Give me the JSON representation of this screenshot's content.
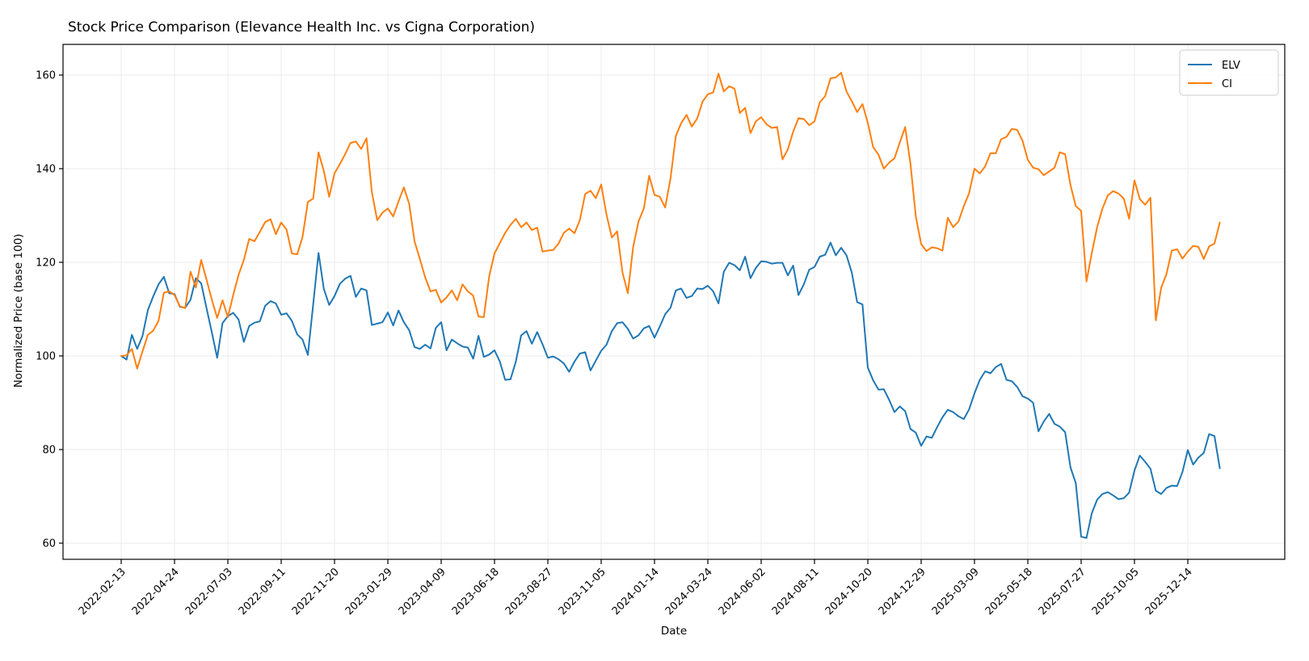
{
  "page": {
    "title": "Stock Price Comparison (Elevance Health Inc. vs Cigna Corporation)"
  },
  "chart_data": {
    "type": "line",
    "title": "Stock Price Comparison (Elevance Health Inc. vs Cigna Corporation)",
    "xlabel": "Date",
    "ylabel": "Normalized Price (base 100)",
    "x_start_date": "2022-02-13",
    "x_interval_days": 7,
    "x_tick_week_indices": [
      0,
      10,
      20,
      30,
      40,
      50,
      60,
      70,
      80,
      90,
      100,
      110,
      120,
      130,
      140,
      150,
      160,
      170,
      180,
      190,
      200
    ],
    "x_tick_labels": [
      "2022-02-13",
      "2022-04-24",
      "2022-07-03",
      "2022-09-11",
      "2022-11-20",
      "2023-01-29",
      "2023-04-09",
      "2023-06-18",
      "2023-08-27",
      "2023-11-05",
      "2024-01-14",
      "2024-03-24",
      "2024-06-02",
      "2024-08-11",
      "2024-10-20",
      "2024-12-29",
      "2025-03-09",
      "2025-05-18",
      "2025-07-27",
      "2025-10-05",
      "2025-12-14"
    ],
    "y_ticks": [
      60,
      80,
      100,
      120,
      140,
      160
    ],
    "ylim": [
      56.5,
      165.5
    ],
    "grid": true,
    "grid_color": "#ebebeb",
    "background_color": "#ffffff",
    "spine_color": "#000000",
    "legend_position": "upper right",
    "series": [
      {
        "name": "ELV",
        "color": "#1f77b4",
        "values": [
          100.0,
          99.2,
          104.5,
          101.5,
          104.3,
          109.8,
          112.7,
          115.3,
          116.9,
          113.4,
          113.2,
          110.5,
          110.3,
          112.0,
          116.6,
          115.5,
          110.2,
          105.0,
          99.6,
          107.0,
          108.5,
          109.2,
          107.8,
          103.0,
          106.4,
          107.1,
          107.4,
          110.7,
          111.7,
          111.2,
          108.8,
          109.1,
          107.5,
          104.6,
          103.5,
          100.2,
          111.0,
          122.0,
          114.3,
          110.9,
          112.8,
          115.4,
          116.5,
          117.1,
          112.6,
          114.4,
          114.0,
          106.6,
          106.9,
          107.2,
          109.3,
          106.5,
          109.7,
          107.2,
          105.5,
          101.9,
          101.5,
          102.4,
          101.6,
          106.0,
          107.2,
          101.2,
          103.5,
          102.7,
          102.0,
          101.8,
          99.4,
          104.3,
          99.8,
          100.3,
          101.2,
          98.8,
          94.9,
          95.0,
          98.8,
          104.4,
          105.3,
          102.6,
          105.1,
          102.5,
          99.6,
          99.9,
          99.3,
          98.4,
          96.6,
          98.8,
          100.5,
          100.8,
          96.9,
          99.0,
          101.1,
          102.4,
          105.3,
          107.0,
          107.2,
          105.8,
          103.7,
          104.4,
          105.9,
          106.4,
          103.9,
          106.3,
          108.9,
          110.3,
          114.0,
          114.4,
          112.4,
          112.8,
          114.4,
          114.3,
          115.0,
          113.8,
          111.2,
          118.0,
          119.9,
          119.4,
          118.3,
          121.2,
          116.6,
          118.8,
          120.2,
          120.1,
          119.7,
          119.9,
          119.9,
          117.2,
          119.3,
          113.0,
          115.3,
          118.4,
          119.0,
          121.2,
          121.6,
          124.2,
          121.5,
          123.1,
          121.5,
          117.8,
          111.5,
          111.0,
          97.5,
          94.8,
          92.8,
          92.9,
          90.6,
          88.0,
          89.2,
          88.2,
          84.4,
          83.6,
          80.8,
          82.8,
          82.5,
          84.8,
          86.9,
          88.5,
          88.0,
          87.1,
          86.5,
          88.6,
          92.0,
          94.9,
          96.7,
          96.3,
          97.6,
          98.3,
          94.9,
          94.6,
          93.4,
          91.4,
          90.9,
          90.0,
          83.9,
          86.0,
          87.6,
          85.5,
          84.9,
          83.7,
          76.2,
          72.8,
          61.4,
          61.1,
          66.4,
          69.3,
          70.5,
          70.9,
          70.2,
          69.4,
          69.6,
          70.8,
          75.5,
          78.7,
          77.4,
          75.9,
          71.2,
          70.5,
          71.8,
          72.3,
          72.2,
          75.2,
          79.9,
          76.8,
          78.3,
          79.3,
          83.3,
          82.9,
          76.0
        ]
      },
      {
        "name": "CI",
        "color": "#ff7f0e",
        "values": [
          100.0,
          100.1,
          101.5,
          97.3,
          101.0,
          104.5,
          105.4,
          107.5,
          113.5,
          113.8,
          113.0,
          110.6,
          110.2,
          118.0,
          114.6,
          120.5,
          116.3,
          112.0,
          108.1,
          111.9,
          108.3,
          113.0,
          117.3,
          120.5,
          125.0,
          124.5,
          126.5,
          128.6,
          129.2,
          126.0,
          128.5,
          127.0,
          121.9,
          121.7,
          125.4,
          132.9,
          133.6,
          143.5,
          139.5,
          134.0,
          139.0,
          141.0,
          143.1,
          145.5,
          145.8,
          144.2,
          146.5,
          135.0,
          129.0,
          130.6,
          131.5,
          129.8,
          133.0,
          136.0,
          132.5,
          124.5,
          120.7,
          116.8,
          113.8,
          114.1,
          111.4,
          112.5,
          114.0,
          111.9,
          115.3,
          113.8,
          112.9,
          108.4,
          108.3,
          117.0,
          121.9,
          124.1,
          126.3,
          128.0,
          129.3,
          127.5,
          128.5,
          126.9,
          127.4,
          122.3,
          122.5,
          122.6,
          124.0,
          126.3,
          127.2,
          126.2,
          129.0,
          134.6,
          135.3,
          133.7,
          136.6,
          130.2,
          125.3,
          126.6,
          117.8,
          113.4,
          123.3,
          128.7,
          131.5,
          138.5,
          134.4,
          134.0,
          131.7,
          137.9,
          147.0,
          149.7,
          151.5,
          149.0,
          150.7,
          154.3,
          155.9,
          156.3,
          160.3,
          156.5,
          157.6,
          157.1,
          151.9,
          153.0,
          147.6,
          150.1,
          151.0,
          149.5,
          148.7,
          148.9,
          142.0,
          144.1,
          147.9,
          150.8,
          150.6,
          149.3,
          150.1,
          154.2,
          155.5,
          159.3,
          159.5,
          160.5,
          156.5,
          154.4,
          152.1,
          153.8,
          149.8,
          144.6,
          143.0,
          140.0,
          141.3,
          142.2,
          145.6,
          148.9,
          141.0,
          129.8,
          123.9,
          122.4,
          123.2,
          123.0,
          122.5,
          129.5,
          127.5,
          128.7,
          132.0,
          134.8,
          140.0,
          139.0,
          140.5,
          143.3,
          143.3,
          146.3,
          146.8,
          148.5,
          148.3,
          146.0,
          141.9,
          140.2,
          139.9,
          138.6,
          139.4,
          140.2,
          143.5,
          143.1,
          136.5,
          132.0,
          131.0,
          115.9,
          122.0,
          127.5,
          131.5,
          134.3,
          135.2,
          134.7,
          133.6,
          129.3,
          137.5,
          133.5,
          132.3,
          133.8,
          107.6,
          114.5,
          117.5,
          122.5,
          122.8,
          120.8,
          122.3,
          123.5,
          123.3,
          120.7,
          123.4,
          124.0,
          128.5
        ]
      }
    ]
  }
}
